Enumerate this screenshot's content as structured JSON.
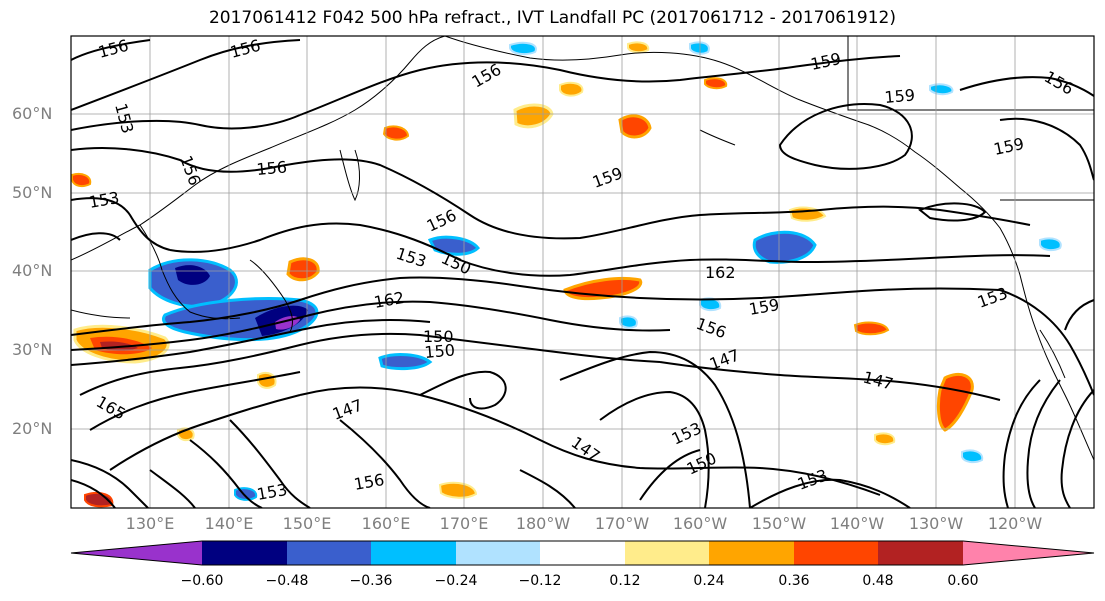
{
  "title": "2017061412 F042 500 hPa refract., IVT Landfall PC (2017061712 - 2017061912)",
  "lat_labels": [
    "60°N",
    "50°N",
    "40°N",
    "30°N",
    "20°N"
  ],
  "lon_labels": [
    "130°E",
    "140°E",
    "150°E",
    "160°E",
    "170°E",
    "180°W",
    "170°W",
    "160°W",
    "150°W",
    "140°W",
    "130°W",
    "120°W"
  ],
  "contour_labels": [
    "156",
    "156",
    "156",
    "159",
    "159",
    "156",
    "153",
    "156",
    "156",
    "153",
    "156",
    "153",
    "150",
    "162",
    "162",
    "159",
    "153",
    "156",
    "150",
    "147",
    "147",
    "147",
    "150",
    "153",
    "147",
    "153",
    "150",
    "156",
    "153",
    "165",
    "159",
    "159"
  ],
  "colorbar": {
    "colors": [
      "#9932cc",
      "#000080",
      "#3a5fcd",
      "#00bfff",
      "#b0e2ff",
      "#ffffff",
      "#ffec8b",
      "#ffa500",
      "#ff4500",
      "#b22222",
      "#ff82ab"
    ],
    "tick_labels": [
      "−0.60",
      "−0.48",
      "−0.36",
      "−0.24",
      "−0.12",
      "0.12",
      "0.24",
      "0.36",
      "0.48",
      "0.60"
    ]
  }
}
